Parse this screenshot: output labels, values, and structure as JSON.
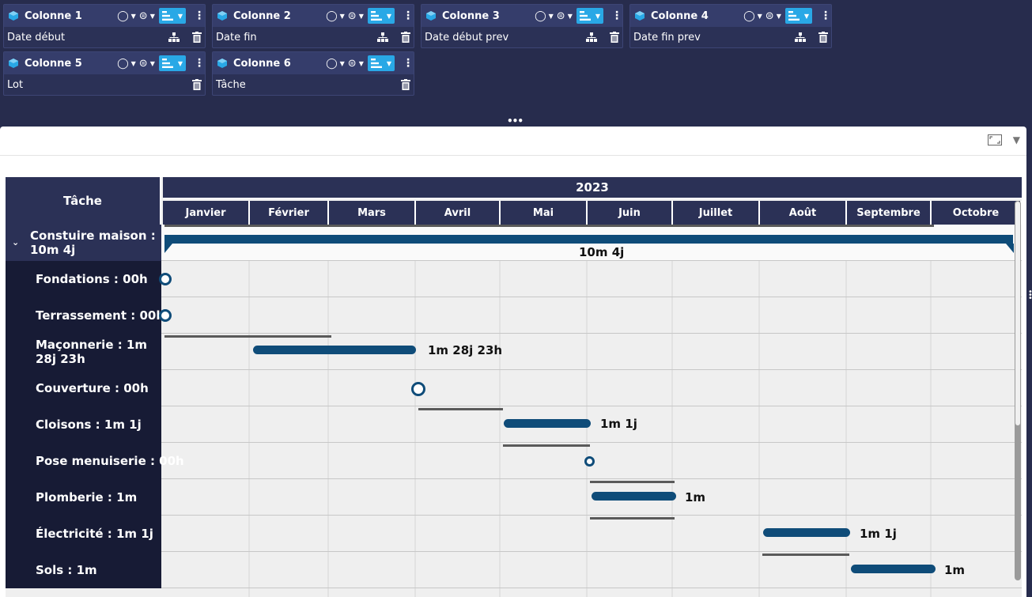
{
  "colors": {
    "bg": "#272c4d",
    "card": "#2b3156",
    "header": "#353d6b",
    "accent": "#29a8e6",
    "bar": "#0f4c79",
    "label_bg": "#171b35"
  },
  "columns": [
    {
      "title": "Colonne 1",
      "field": "Date début",
      "hierarchy": true
    },
    {
      "title": "Colonne 2",
      "field": "Date fin",
      "hierarchy": true
    },
    {
      "title": "Colonne 3",
      "field": "Date début prev",
      "hierarchy": true
    },
    {
      "title": "Colonne 4",
      "field": "Date fin prev",
      "hierarchy": true
    },
    {
      "title": "Colonne 5",
      "field": "Lot",
      "hierarchy": false
    },
    {
      "title": "Colonne 6",
      "field": "Tâche",
      "hierarchy": false
    }
  ],
  "icons": {
    "column": "cube-icon",
    "rank": "medal-icon",
    "aggregate": "equals-circle-icon",
    "sort": "bar-sort-icon",
    "more": "kebab-icon",
    "hierarchy": "hierarchy-icon",
    "delete": "trash-icon",
    "fullscreen": "fullscreen-icon",
    "menu": "caret-down-icon"
  },
  "gantt": {
    "task_header": "Tâche",
    "year": "2023",
    "months": [
      "Janvier",
      "Février",
      "Mars",
      "Avril",
      "Mai",
      "Juin",
      "Juillet",
      "Août",
      "Septembre",
      "Octobre"
    ],
    "parent": {
      "label": "Constuire maison : 10m 4j",
      "duration": "10m 4j"
    },
    "tasks": [
      {
        "label": "Fondations : 00h",
        "duration": ""
      },
      {
        "label": "Terrassement : 00h",
        "duration": ""
      },
      {
        "label": "Maçonnerie : 1m 28j 23h",
        "duration": "1m 28j 23h"
      },
      {
        "label": "Couverture : 00h",
        "duration": ""
      },
      {
        "label": "Cloisons : 1m 1j",
        "duration": "1m 1j"
      },
      {
        "label": "Pose menuiserie : 00h",
        "duration": ""
      },
      {
        "label": "Plomberie : 1m",
        "duration": "1m"
      },
      {
        "label": "Électricité : 1m 1j",
        "duration": "1m 1j"
      },
      {
        "label": "Sols : 1m",
        "duration": "1m"
      }
    ]
  }
}
